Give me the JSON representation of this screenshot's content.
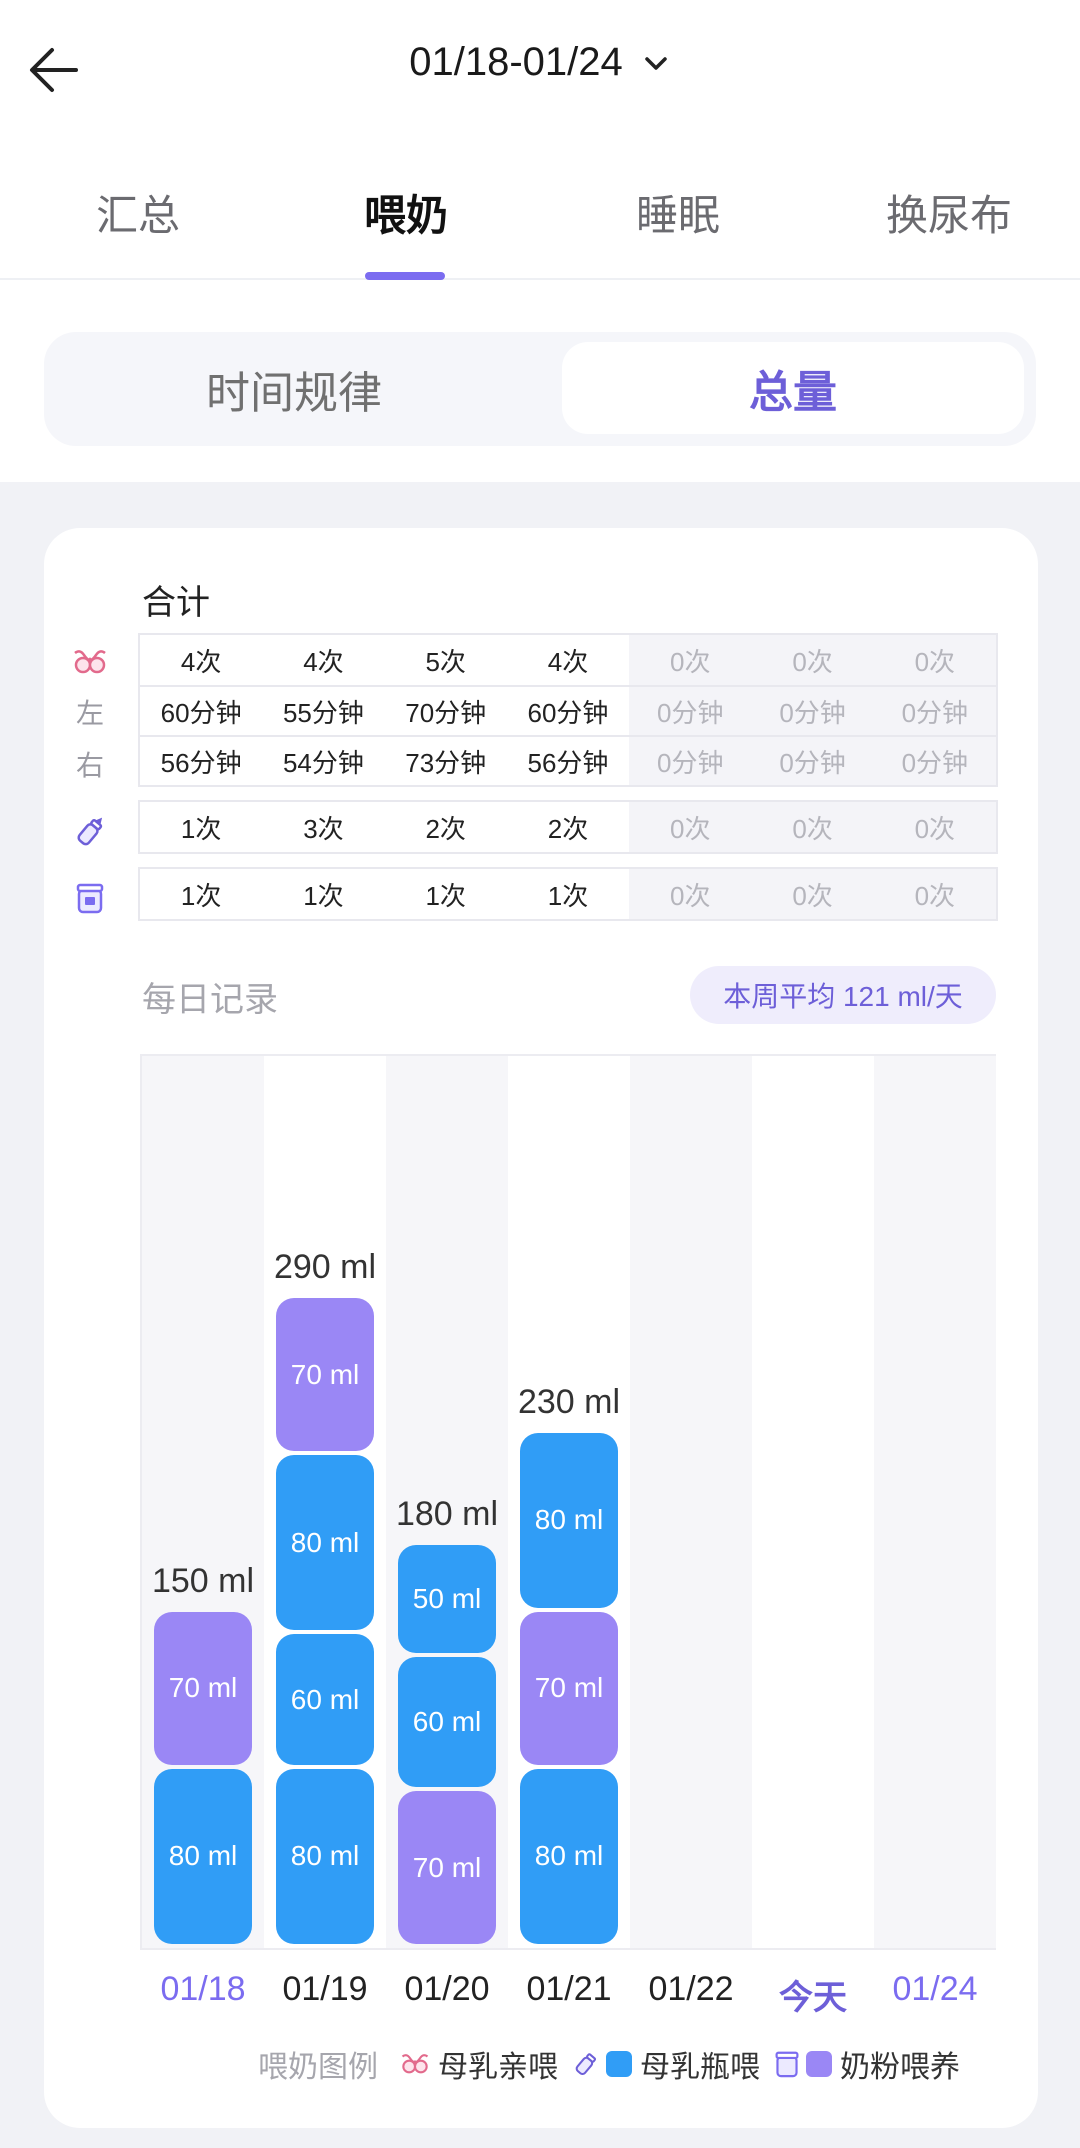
{
  "header": {
    "date_range": "01/18-01/24",
    "back_icon": "arrow-left-icon",
    "dropdown_icon": "chevron-down-icon"
  },
  "tabs": [
    {
      "label": "汇总",
      "active": false
    },
    {
      "label": "喂奶",
      "active": true
    },
    {
      "label": "睡眠",
      "active": false
    },
    {
      "label": "换尿布",
      "active": false
    }
  ],
  "segmented": {
    "left": "时间规律",
    "right": "总量",
    "selected": "总量"
  },
  "totals": {
    "title": "合计",
    "rows": [
      {
        "icon": "breast-icon",
        "label": "",
        "values": [
          "4次",
          "4次",
          "5次",
          "4次",
          "0次",
          "0次",
          "0次"
        ]
      },
      {
        "icon": "",
        "label": "左",
        "values": [
          "60分钟",
          "55分钟",
          "70分钟",
          "60分钟",
          "0分钟",
          "0分钟",
          "0分钟"
        ]
      },
      {
        "icon": "",
        "label": "右",
        "values": [
          "56分钟",
          "54分钟",
          "73分钟",
          "56分钟",
          "0分钟",
          "0分钟",
          "0分钟"
        ]
      },
      {
        "icon": "bottle-icon",
        "label": "",
        "values": [
          "1次",
          "3次",
          "2次",
          "2次",
          "0次",
          "0次",
          "0次"
        ]
      },
      {
        "icon": "formula-can-icon",
        "label": "",
        "values": [
          "1次",
          "1次",
          "1次",
          "1次",
          "0次",
          "0次",
          "0次"
        ]
      }
    ]
  },
  "daily": {
    "title": "每日记录",
    "weekly_average": "本周平均 121 ml/天"
  },
  "chart_data": {
    "type": "bar",
    "stacked": true,
    "categories": [
      "01/18",
      "01/19",
      "01/20",
      "01/21",
      "01/22",
      "今天",
      "01/24"
    ],
    "totals": [
      "150 ml",
      "290 ml",
      "180 ml",
      "230 ml",
      "",
      "",
      ""
    ],
    "total_values": [
      150,
      290,
      180,
      230,
      0,
      0,
      0
    ],
    "stacks": [
      [
        {
          "kind": "bottle",
          "value": 80,
          "label": "80 ml"
        },
        {
          "kind": "formula",
          "value": 70,
          "label": "70 ml"
        }
      ],
      [
        {
          "kind": "bottle",
          "value": 80,
          "label": "80 ml"
        },
        {
          "kind": "bottle",
          "value": 60,
          "label": "60 ml"
        },
        {
          "kind": "bottle",
          "value": 80,
          "label": "80 ml"
        },
        {
          "kind": "formula",
          "value": 70,
          "label": "70 ml"
        }
      ],
      [
        {
          "kind": "formula",
          "value": 70,
          "label": "70 ml"
        },
        {
          "kind": "bottle",
          "value": 60,
          "label": "60 ml"
        },
        {
          "kind": "bottle",
          "value": 50,
          "label": "50 ml"
        }
      ],
      [
        {
          "kind": "bottle",
          "value": 80,
          "label": "80 ml"
        },
        {
          "kind": "formula",
          "value": 70,
          "label": "70 ml"
        },
        {
          "kind": "bottle",
          "value": 80,
          "label": "80 ml"
        }
      ],
      [],
      [],
      []
    ],
    "colors": {
      "bottle": "#309df6",
      "formula": "#9a87f5",
      "accent": "#6d5fd8"
    },
    "highlighted_categories": [
      "01/18",
      "今天",
      "01/24"
    ]
  },
  "legend": {
    "title": "喂奶图例",
    "items": [
      {
        "label": "母乳亲喂",
        "icon": "breast-icon",
        "color": ""
      },
      {
        "label": "母乳瓶喂",
        "icon": "bottle-icon",
        "color": "#309df6"
      },
      {
        "label": "奶粉喂养",
        "icon": "formula-can-icon",
        "color": "#9a87f5"
      }
    ]
  }
}
